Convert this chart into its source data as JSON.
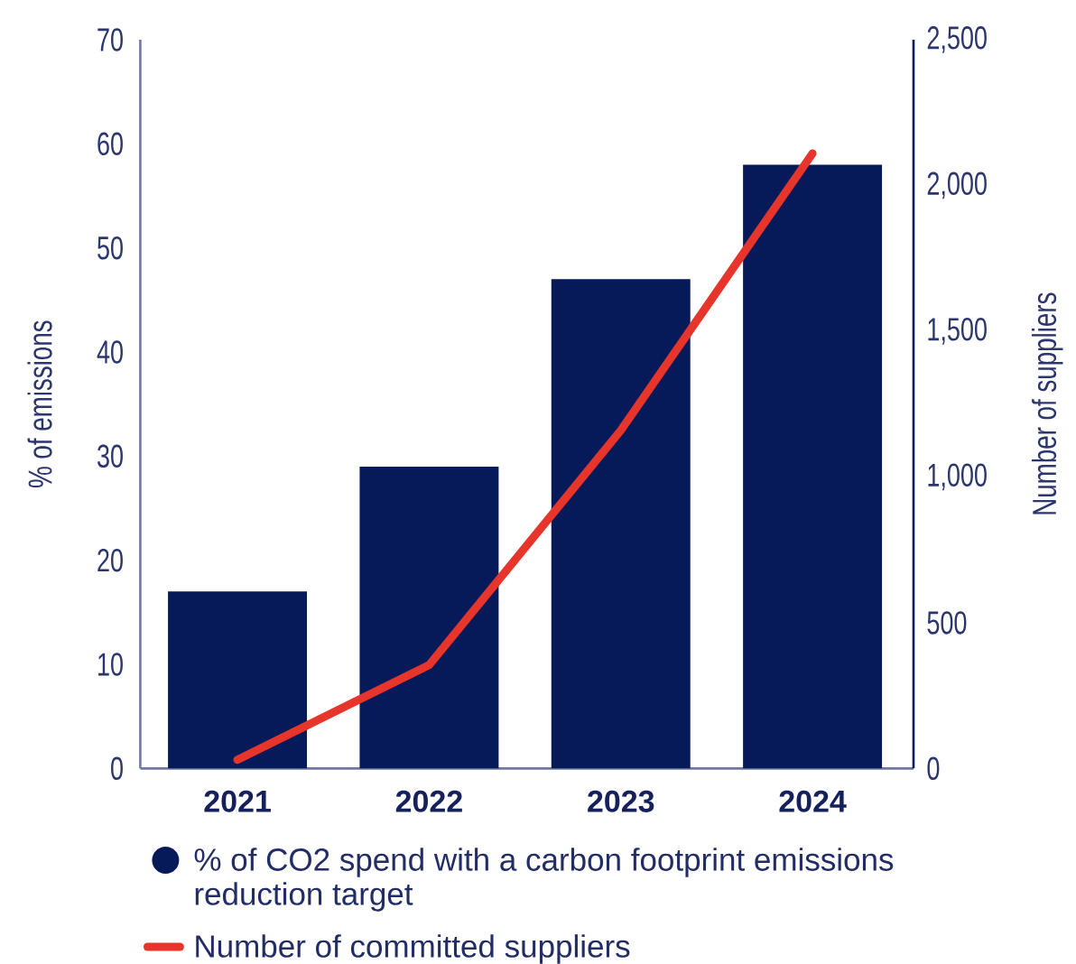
{
  "chart_data": {
    "type": "bar",
    "categories": [
      "2021",
      "2022",
      "2023",
      "2024"
    ],
    "ylabel": "% of emissions",
    "y2label": "Number of suppliers",
    "ylim": [
      0,
      70
    ],
    "yticks": [
      0,
      10,
      20,
      30,
      40,
      50,
      60,
      70
    ],
    "y2lim": [
      0,
      2500
    ],
    "y2ticks": [
      0,
      500,
      {
        "value": 1000,
        "label": "1,000"
      },
      {
        "value": 1500,
        "label": "1,500"
      },
      {
        "value": 2000,
        "label": "2,000"
      },
      {
        "value": 2500,
        "label": "2,500"
      }
    ],
    "legend": "bottom",
    "series": [
      {
        "name": "% of CO2 spend with a carbon footprint emissions reduction target",
        "color": "#061a5a",
        "values": [
          17,
          29,
          47,
          58
        ]
      },
      {
        "name": "Number of committed suppliers",
        "type": "line",
        "axis": "y2",
        "color": "#e8352b",
        "values": [
          30,
          355,
          1160,
          2110
        ]
      }
    ]
  }
}
